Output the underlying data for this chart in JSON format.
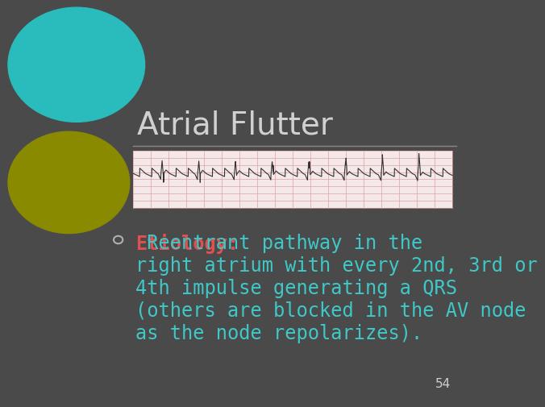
{
  "title": "Atrial Flutter",
  "title_color": "#d0d0d0",
  "title_fontsize": 28,
  "background_color": "#4a4a4a",
  "slide_number": "54",
  "etiology_label": "Etiology:",
  "etiology_label_color": "#e05050",
  "etiology_text": " Reentrant pathway in the\nright atrium with every 2nd, 3rd or\n4th impulse generating a QRS\n(others are blocked in the AV node\nas the node repolarizes).",
  "etiology_text_color": "#40c8c8",
  "bullet_color": "#b0b0b0",
  "ecg_bg": "#f5e8e8",
  "ecg_grid_color": "#e0a0a0",
  "ecg_line_color": "#333333",
  "teal_circle_color": "#2abcbc",
  "olive_circle_color": "#8a8a00",
  "hr_line_color": "#888888",
  "text_fontsize": 17,
  "label_fontsize": 17
}
